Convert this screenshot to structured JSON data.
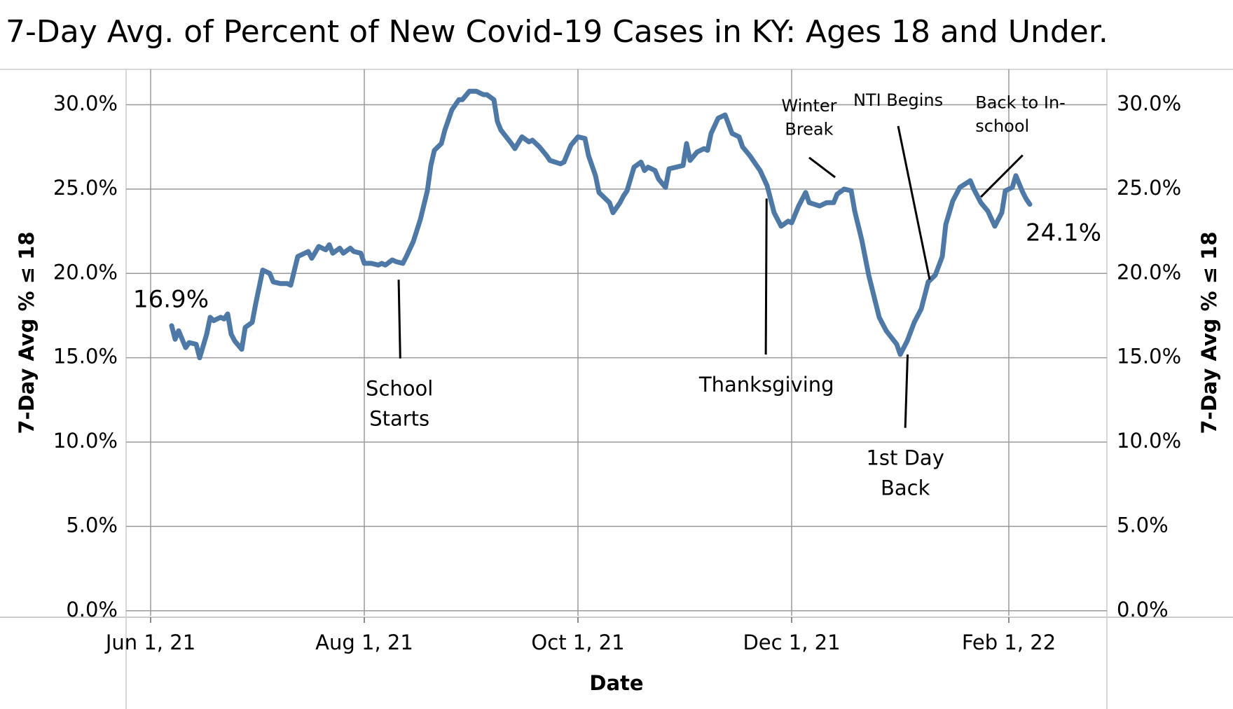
{
  "chart_data": {
    "type": "line",
    "title": "7-Day Avg. of Percent of New Covid-19 Cases in KY: Ages 18 and Under.",
    "y_label": "7-Day Avg % ≤ 18",
    "y2_label": "7-Day Avg % ≤ 18",
    "x_label": "Date",
    "xlim": [
      "2021-05-25",
      "2022-03-01"
    ],
    "xticks": [
      {
        "value": "2021-06-01",
        "label": "Jun 1, 21"
      },
      {
        "value": "2021-08-01",
        "label": "Aug 1, 21"
      },
      {
        "value": "2021-10-01",
        "label": "Oct 1, 21"
      },
      {
        "value": "2021-12-01",
        "label": "Dec 1, 21"
      },
      {
        "value": "2022-02-01",
        "label": "Feb 1, 22"
      }
    ],
    "ylim": [
      -0.3,
      32.1
    ],
    "yticks": [
      {
        "value": 0,
        "label": "0.0%"
      },
      {
        "value": 5,
        "label": "5.0%"
      },
      {
        "value": 10,
        "label": "10.0%"
      },
      {
        "value": 15,
        "label": "15.0%"
      },
      {
        "value": 20,
        "label": "20.0%"
      },
      {
        "value": 25,
        "label": "25.0%"
      },
      {
        "value": 30,
        "label": "30.0%"
      }
    ],
    "grid": true,
    "x": [
      "2021-06-07",
      "2021-06-08",
      "2021-06-09",
      "2021-06-11",
      "2021-06-12",
      "2021-06-14",
      "2021-06-15",
      "2021-06-17",
      "2021-06-18",
      "2021-06-19",
      "2021-06-21",
      "2021-06-22",
      "2021-06-23",
      "2021-06-24",
      "2021-06-25",
      "2021-06-27",
      "2021-06-28",
      "2021-06-30",
      "2021-07-01",
      "2021-07-03",
      "2021-07-05",
      "2021-07-06",
      "2021-07-08",
      "2021-07-10",
      "2021-07-11",
      "2021-07-13",
      "2021-07-16",
      "2021-07-17",
      "2021-07-19",
      "2021-07-21",
      "2021-07-22",
      "2021-07-23",
      "2021-07-25",
      "2021-07-26",
      "2021-07-28",
      "2021-07-29",
      "2021-07-31",
      "2021-08-01",
      "2021-08-03",
      "2021-08-05",
      "2021-08-06",
      "2021-08-07",
      "2021-08-09",
      "2021-08-10",
      "2021-08-12",
      "2021-08-13",
      "2021-08-15",
      "2021-08-17",
      "2021-08-19",
      "2021-08-20",
      "2021-08-21",
      "2021-08-23",
      "2021-08-24",
      "2021-08-26",
      "2021-08-28",
      "2021-08-29",
      "2021-08-31",
      "2021-09-02",
      "2021-09-04",
      "2021-09-05",
      "2021-09-07",
      "2021-09-08",
      "2021-09-09",
      "2021-09-12",
      "2021-09-13",
      "2021-09-15",
      "2021-09-17",
      "2021-09-18",
      "2021-09-20",
      "2021-09-22",
      "2021-09-23",
      "2021-09-26",
      "2021-09-27",
      "2021-09-29",
      "2021-10-01",
      "2021-10-03",
      "2021-10-04",
      "2021-10-06",
      "2021-10-07",
      "2021-10-08",
      "2021-10-10",
      "2021-10-11",
      "2021-10-13",
      "2021-10-14",
      "2021-10-15",
      "2021-10-17",
      "2021-10-19",
      "2021-10-20",
      "2021-10-21",
      "2021-10-23",
      "2021-10-24",
      "2021-10-26",
      "2021-10-27",
      "2021-10-29",
      "2021-10-31",
      "2021-11-01",
      "2021-11-02",
      "2021-11-04",
      "2021-11-06",
      "2021-11-07",
      "2021-11-08",
      "2021-11-10",
      "2021-11-12",
      "2021-11-14",
      "2021-11-16",
      "2021-11-17",
      "2021-11-19",
      "2021-11-21",
      "2021-11-22",
      "2021-11-24",
      "2021-11-26",
      "2021-11-28",
      "2021-11-30",
      "2021-12-01",
      "2021-12-03",
      "2021-12-05",
      "2021-12-06",
      "2021-12-09",
      "2021-12-11",
      "2021-12-13",
      "2021-12-14",
      "2021-12-16",
      "2021-12-18",
      "2021-12-19",
      "2021-12-21",
      "2021-12-23",
      "2021-12-26",
      "2021-12-28",
      "2021-12-31",
      "2022-01-01",
      "2022-01-03",
      "2022-01-05",
      "2022-01-07",
      "2022-01-09",
      "2022-01-11",
      "2022-01-13",
      "2022-01-14",
      "2022-01-16",
      "2022-01-18",
      "2022-01-21",
      "2022-01-22",
      "2022-01-24",
      "2022-01-26",
      "2022-01-28",
      "2022-01-30",
      "2022-01-31",
      "2022-02-02",
      "2022-02-03",
      "2022-02-05",
      "2022-02-06",
      "2022-02-07"
    ],
    "series": [
      {
        "name": "7-Day Avg % ≤ 18",
        "color": "#4e79a7",
        "values": [
          16.9,
          16.1,
          16.6,
          15.6,
          15.9,
          15.8,
          15.0,
          16.4,
          17.4,
          17.2,
          17.4,
          17.3,
          17.6,
          16.4,
          16.0,
          15.5,
          16.8,
          17.1,
          18.2,
          20.2,
          20.0,
          19.5,
          19.4,
          19.4,
          19.3,
          21.0,
          21.3,
          20.9,
          21.6,
          21.4,
          21.7,
          21.2,
          21.5,
          21.2,
          21.5,
          21.3,
          21.2,
          20.6,
          20.6,
          20.5,
          20.6,
          20.5,
          20.8,
          20.7,
          20.6,
          21.0,
          21.9,
          23.2,
          24.9,
          26.4,
          27.3,
          27.7,
          28.5,
          29.7,
          30.3,
          30.3,
          30.8,
          30.8,
          30.6,
          30.6,
          30.3,
          29.0,
          28.5,
          27.7,
          27.4,
          28.1,
          27.8,
          27.9,
          27.5,
          27.0,
          26.7,
          26.5,
          26.6,
          27.6,
          28.1,
          28.0,
          27.0,
          25.8,
          24.8,
          24.6,
          24.2,
          23.6,
          24.2,
          24.6,
          24.9,
          26.3,
          26.6,
          26.1,
          26.3,
          26.1,
          25.6,
          25.1,
          26.2,
          26.3,
          26.4,
          27.7,
          26.7,
          27.2,
          27.4,
          27.3,
          28.3,
          29.2,
          29.4,
          28.3,
          28.1,
          27.5,
          27.0,
          26.4,
          26.1,
          25.2,
          23.6,
          22.8,
          23.1,
          23.0,
          24.0,
          24.8,
          24.2,
          24.0,
          24.2,
          24.2,
          24.7,
          25.0,
          24.9,
          23.7,
          22.0,
          19.9,
          17.4,
          16.6,
          15.8,
          15.2,
          16.0,
          17.1,
          17.9,
          19.5,
          19.9,
          21.0,
          22.9,
          24.3,
          25.1,
          25.5,
          25.0,
          24.2,
          23.7,
          22.8,
          23.6,
          24.9,
          25.1,
          25.8,
          24.8,
          24.4,
          24.1
        ]
      }
    ],
    "point_labels": {
      "first": "16.9%",
      "last": "24.1%"
    },
    "annotations": [
      {
        "lines": [
          "School",
          "Starts"
        ]
      },
      {
        "lines": [
          "Thanksgiving"
        ]
      },
      {
        "lines": [
          "Winter",
          "Break"
        ]
      },
      {
        "lines": [
          "NTI Begins"
        ]
      },
      {
        "lines": [
          "Back to In-",
          "school"
        ]
      },
      {
        "lines": [
          "1st Day",
          "Back"
        ]
      }
    ]
  }
}
